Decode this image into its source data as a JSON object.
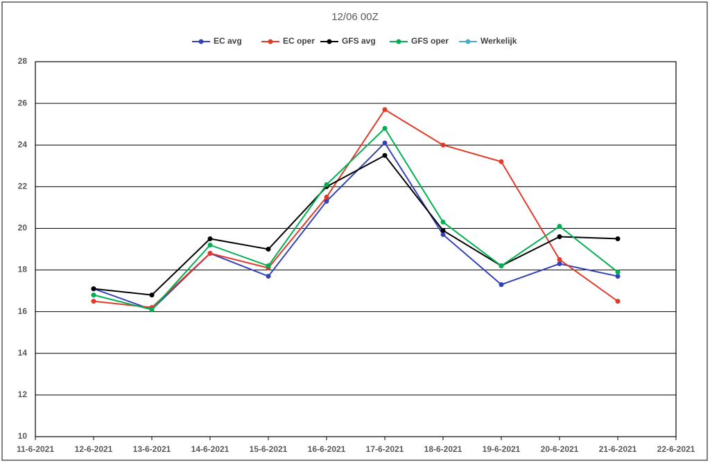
{
  "chart_data": {
    "type": "line",
    "title": "12/06 00Z",
    "categories": [
      "11-6-2021",
      "12-6-2021",
      "13-6-2021",
      "14-6-2021",
      "15-6-2021",
      "16-6-2021",
      "17-6-2021",
      "18-6-2021",
      "19-6-2021",
      "20-6-2021",
      "21-6-2021",
      "22-6-2021"
    ],
    "series": [
      {
        "name": "EC avg",
        "color": "#3342b8",
        "values": [
          null,
          17.1,
          16.1,
          18.8,
          17.7,
          21.3,
          24.1,
          19.7,
          17.3,
          18.3,
          17.7,
          null
        ]
      },
      {
        "name": "EC oper",
        "color": "#e03a2a",
        "values": [
          null,
          16.5,
          16.2,
          18.8,
          18.1,
          21.5,
          25.7,
          24.0,
          23.2,
          18.5,
          16.5,
          null
        ]
      },
      {
        "name": "GFS avg",
        "color": "#000000",
        "values": [
          null,
          17.1,
          16.8,
          19.5,
          19.0,
          22.0,
          23.5,
          19.9,
          18.2,
          19.6,
          19.5,
          null
        ]
      },
      {
        "name": "GFS oper",
        "color": "#00b050",
        "values": [
          null,
          16.8,
          16.1,
          19.2,
          18.2,
          22.1,
          24.8,
          20.3,
          18.2,
          20.1,
          17.9,
          null
        ]
      },
      {
        "name": "Werkelijk",
        "color": "#4bacc6",
        "values": [
          null,
          null,
          null,
          null,
          null,
          null,
          null,
          null,
          null,
          null,
          null,
          null
        ]
      }
    ],
    "ylim": [
      10,
      28
    ],
    "yticks": [
      10,
      12,
      14,
      16,
      18,
      20,
      22,
      24,
      26,
      28
    ],
    "grid": true
  }
}
